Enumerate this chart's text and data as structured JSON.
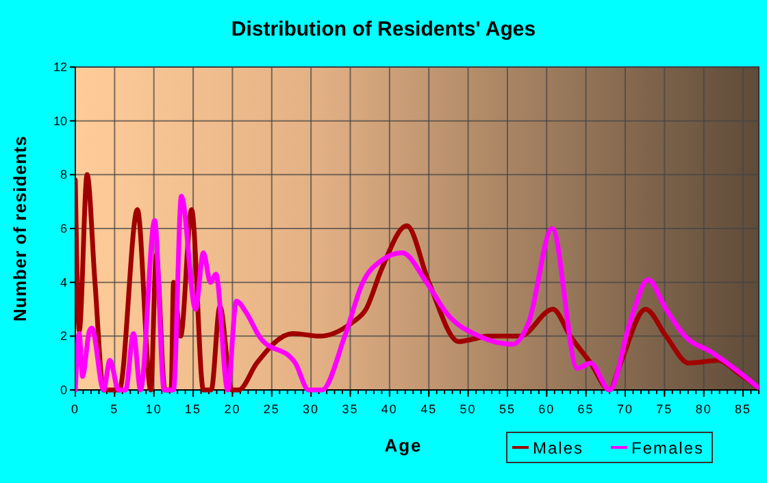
{
  "chart_data": {
    "type": "line",
    "title": "Distribution of Residents' Ages",
    "xlabel": "Age",
    "ylabel": "Number of residents",
    "xlim": [
      0,
      87
    ],
    "ylim": [
      0,
      12
    ],
    "xticks": [
      0,
      5,
      10,
      15,
      20,
      25,
      30,
      35,
      40,
      45,
      50,
      55,
      60,
      65,
      70,
      75,
      80,
      85
    ],
    "yticks": [
      0,
      2,
      4,
      6,
      8,
      10,
      12
    ],
    "grid": true,
    "legend": "bottom right",
    "line_style": "solid",
    "series": [
      {
        "name": "Males",
        "color": "#a00000",
        "x": [
          0,
          0.5,
          1.5,
          2.5,
          3.6,
          5.6,
          7.9,
          9.6,
          10.3,
          11.4,
          12.2,
          12.5,
          13.4,
          14.8,
          16.3,
          17.3,
          18.4,
          19.9,
          20.8,
          23.1,
          27.7,
          31.1,
          35.2,
          37,
          39,
          42.2,
          45,
          48.8,
          50.8,
          52.5,
          56.6,
          60.8,
          63,
          65.6,
          68,
          69.4,
          72.6,
          75.2,
          78.1,
          81.9,
          84.5,
          86.9
        ],
        "values": [
          7.8,
          2.2,
          8,
          4,
          0,
          0,
          6.7,
          0,
          5,
          0,
          0,
          4,
          2,
          6.7,
          0,
          0,
          3.1,
          0,
          0,
          1,
          2.1,
          2,
          2.5,
          3,
          4.5,
          6.1,
          4,
          1.8,
          1.9,
          2,
          2,
          3,
          2,
          1,
          0,
          1,
          3,
          2,
          1,
          1.1,
          0.6,
          0.1
        ]
      },
      {
        "name": "Females",
        "color": "#ff00ff",
        "x": [
          0,
          0.5,
          0.9,
          1.8,
          2.1,
          3.6,
          4.4,
          5.5,
          6.4,
          7.4,
          8.3,
          10.1,
          11.3,
          12.5,
          13.5,
          15.3,
          16.3,
          17.2,
          17.9,
          19.4,
          20.5,
          21.7,
          23.4,
          28,
          29.7,
          31.4,
          34.3,
          36.6,
          38.9,
          41.6,
          44.7,
          47.4,
          51.4,
          55.7,
          57.7,
          60.7,
          63.9,
          65.6,
          68,
          70.6,
          72.9,
          75.2,
          77.6,
          81,
          84.8,
          86.9
        ],
        "values": [
          0,
          2.1,
          0.5,
          2.2,
          2.3,
          0,
          1.1,
          0,
          0,
          2.1,
          0,
          6.3,
          0,
          0,
          7.2,
          3,
          5.1,
          4,
          4.3,
          0,
          3.3,
          2.9,
          2,
          1,
          0,
          0,
          2,
          4,
          4.8,
          5.1,
          4,
          2.8,
          2,
          1.7,
          2.5,
          6,
          0.8,
          1,
          0,
          2.5,
          4.1,
          3,
          2,
          1.4,
          0.6,
          0.1
        ]
      }
    ]
  }
}
